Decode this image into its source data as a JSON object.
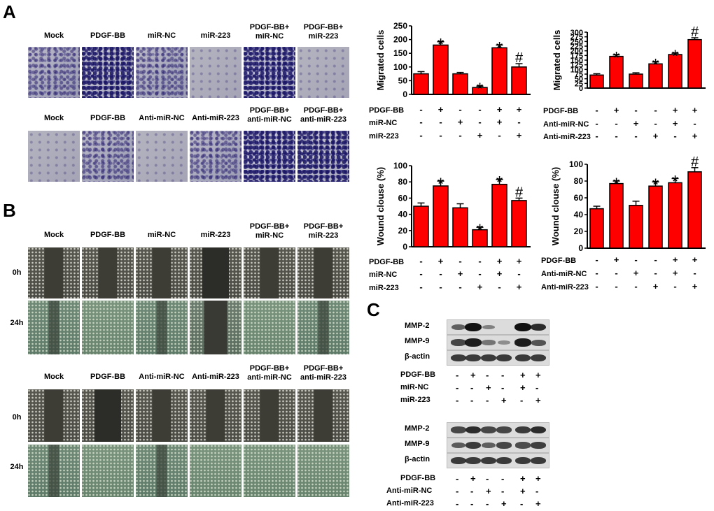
{
  "panels": {
    "A": "A",
    "B": "B",
    "C": "C"
  },
  "panelA": {
    "row1_labels": [
      "Mock",
      "PDGF-BB",
      "miR-NC",
      "miR-223",
      "PDGF-BB+\nmiR-NC",
      "PDGF-BB+\nmiR-223"
    ],
    "row2_labels": [
      "Mock",
      "PDGF-BB",
      "Anti-miR-NC",
      "Anti-miR-223",
      "PDGF-BB+\nanti-miR-NC",
      "PDGF-BB+\nanti-miR-223"
    ]
  },
  "panelB": {
    "row1_labels": [
      "Mock",
      "PDGF-BB",
      "miR-NC",
      "miR-223",
      "PDGF-BB+\nmiR-NC",
      "PDGF-BB+\nmiR-223"
    ],
    "row2_labels": [
      "Mock",
      "PDGF-BB",
      "Anti-miR-NC",
      "Anti-miR-223",
      "PDGF-BB+\nanti-miR-NC",
      "PDGF-BB+\nanti-miR-223"
    ],
    "time_0h": "0h",
    "time_24h": "24h"
  },
  "panelC": {
    "blot_top": {
      "bands": [
        "MMP-2",
        "MMP-9",
        "β-actin"
      ],
      "table": [
        {
          "label": "PDGF-BB",
          "signs": [
            "-",
            "+",
            "-",
            "-",
            "+",
            "+"
          ]
        },
        {
          "label": "miR-NC",
          "signs": [
            "-",
            "-",
            "+",
            "-",
            "+",
            "-"
          ]
        },
        {
          "label": "miR-223",
          "signs": [
            "-",
            "-",
            "-",
            "+",
            "-",
            "+"
          ]
        }
      ]
    },
    "blot_bottom": {
      "bands": [
        "MMP-2",
        "MMP-9",
        "β-actin"
      ],
      "table": [
        {
          "label": "PDGF-BB",
          "signs": [
            "-",
            "+",
            "-",
            "-",
            "+",
            "+"
          ]
        },
        {
          "label": "Anti-miR-NC",
          "signs": [
            "-",
            "-",
            "+",
            "-",
            "+",
            "-"
          ]
        },
        {
          "label": "Anti-miR-223",
          "signs": [
            "-",
            "-",
            "-",
            "+",
            "-",
            "+"
          ]
        }
      ]
    }
  },
  "chart_data": [
    {
      "type": "bar",
      "ylabel": "Migrated cells",
      "ylim": [
        0,
        250
      ],
      "yticks": [
        0,
        50,
        100,
        150,
        200,
        250
      ],
      "values": [
        75,
        180,
        75,
        25,
        170,
        100
      ],
      "errors": [
        8,
        12,
        5,
        5,
        10,
        12
      ],
      "annotations": [
        "",
        "*",
        "",
        "*",
        "*",
        "#"
      ],
      "color": "#ff0000",
      "table": [
        {
          "label": "PDGF-BB",
          "signs": [
            "-",
            "+",
            "-",
            "-",
            "+",
            "+"
          ]
        },
        {
          "label": "miR-NC",
          "signs": [
            "-",
            "-",
            "+",
            "-",
            "+",
            "-"
          ]
        },
        {
          "label": "miR-223",
          "signs": [
            "-",
            "-",
            "-",
            "+",
            "-",
            "+"
          ]
        }
      ]
    },
    {
      "type": "bar",
      "ylabel": "Migrated cells",
      "ylim": [
        0,
        300
      ],
      "yticks": [
        0,
        25,
        50,
        75,
        100,
        125,
        150,
        175,
        200,
        225,
        250,
        275,
        300
      ],
      "values": [
        70,
        170,
        75,
        130,
        180,
        260
      ],
      "errors": [
        7,
        8,
        7,
        10,
        7,
        10
      ],
      "annotations": [
        "",
        "*",
        "",
        "*",
        "*",
        "#"
      ],
      "color": "#ff0000",
      "table": [
        {
          "label": "PDGF-BB",
          "signs": [
            "-",
            "+",
            "-",
            "-",
            "+",
            "+"
          ]
        },
        {
          "label": "Anti-miR-NC",
          "signs": [
            "-",
            "-",
            "+",
            "-",
            "+",
            "-"
          ]
        },
        {
          "label": "Anti-miR-223",
          "signs": [
            "-",
            "-",
            "-",
            "+",
            "-",
            "+"
          ]
        }
      ]
    },
    {
      "type": "bar",
      "ylabel": "Wound clouse (%)",
      "ylim": [
        0,
        100
      ],
      "yticks": [
        0,
        20,
        40,
        60,
        80,
        100
      ],
      "values": [
        50,
        75,
        48,
        21,
        77,
        57
      ],
      "errors": [
        4,
        6,
        5,
        3,
        6,
        3
      ],
      "annotations": [
        "",
        "*",
        "",
        "*",
        "*",
        "#"
      ],
      "color": "#ff0000",
      "table": [
        {
          "label": "PDGF-BB",
          "signs": [
            "-",
            "+",
            "-",
            "-",
            "+",
            "+"
          ]
        },
        {
          "label": "miR-NC",
          "signs": [
            "-",
            "-",
            "+",
            "-",
            "+",
            "-"
          ]
        },
        {
          "label": "miR-223",
          "signs": [
            "-",
            "-",
            "-",
            "+",
            "-",
            "+"
          ]
        }
      ]
    },
    {
      "type": "bar",
      "ylabel": "Wound clouse (%)",
      "ylim": [
        0,
        100
      ],
      "yticks": [
        0,
        20,
        40,
        60,
        80,
        100
      ],
      "values": [
        47,
        77,
        51,
        74,
        78,
        91
      ],
      "errors": [
        3,
        3,
        5,
        5,
        5,
        5
      ],
      "annotations": [
        "",
        "*",
        "",
        "*",
        "*",
        "#"
      ],
      "color": "#ff0000",
      "table": [
        {
          "label": "PDGF-BB",
          "signs": [
            "-",
            "+",
            "-",
            "-",
            "+",
            "+"
          ]
        },
        {
          "label": "Anti-miR-NC",
          "signs": [
            "-",
            "-",
            "+",
            "-",
            "+",
            "-"
          ]
        },
        {
          "label": "Anti-miR-223",
          "signs": [
            "-",
            "-",
            "-",
            "+",
            "-",
            "+"
          ]
        }
      ]
    }
  ]
}
